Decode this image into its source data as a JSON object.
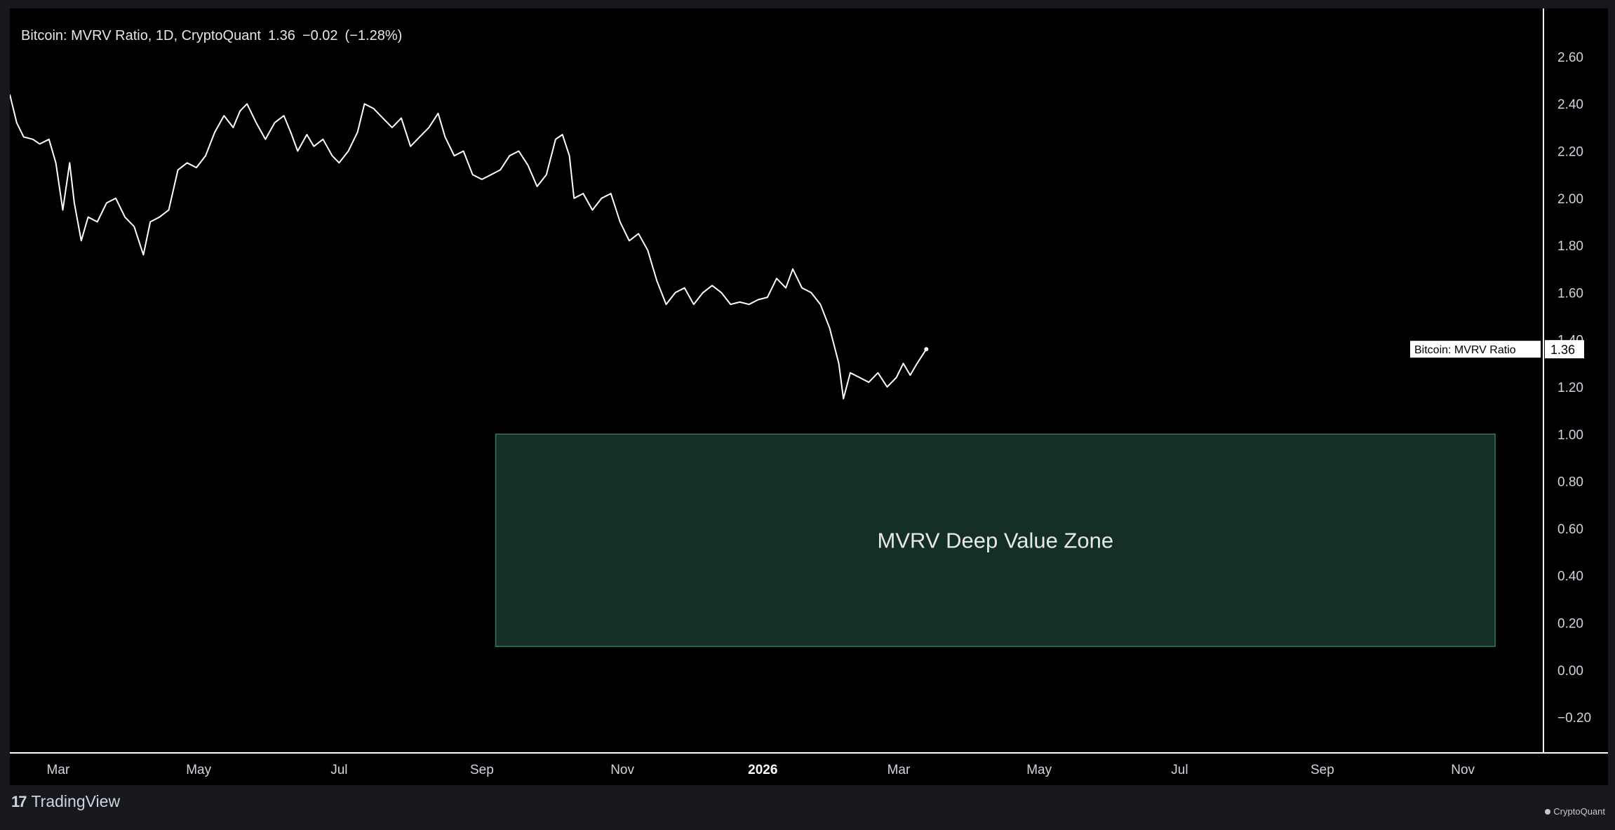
{
  "legend": {
    "series": "Bitcoin: MVRV Ratio, 1D, CryptoQuant",
    "last": "1.36",
    "change": "−0.02",
    "change_pct": "(−1.28%)"
  },
  "branding": {
    "tradingview": "TradingView",
    "cryptoquant": "CryptoQuant"
  },
  "colors": {
    "background": "#000000",
    "line": "#ffffff",
    "zone_fill": "#143026",
    "zone_border": "#2f7a5c",
    "axis": "#ffffff"
  },
  "chart_data": {
    "type": "line",
    "ylim": [
      -0.28,
      2.68
    ],
    "xlim": [
      "2025-02-08",
      "2026-12-06"
    ],
    "y_ticks": [
      "2.60",
      "2.40",
      "2.20",
      "2.00",
      "1.80",
      "1.60",
      "1.40",
      "1.20",
      "1.00",
      "0.80",
      "0.60",
      "0.40",
      "0.20",
      "0.00",
      "−0.20"
    ],
    "y_tick_values": [
      2.6,
      2.4,
      2.2,
      2.0,
      1.8,
      1.6,
      1.4,
      1.2,
      1.0,
      0.8,
      0.6,
      0.4,
      0.2,
      0.0,
      -0.2
    ],
    "x_ticks": [
      {
        "label": "Mar",
        "date": "2025-03-01",
        "bold": false
      },
      {
        "label": "May",
        "date": "2025-05-01",
        "bold": false
      },
      {
        "label": "Jul",
        "date": "2025-07-01",
        "bold": false
      },
      {
        "label": "Sep",
        "date": "2025-09-01",
        "bold": false
      },
      {
        "label": "Nov",
        "date": "2025-11-01",
        "bold": false
      },
      {
        "label": "2026",
        "date": "2026-01-01",
        "bold": true
      },
      {
        "label": "Mar",
        "date": "2026-03-01",
        "bold": false
      },
      {
        "label": "May",
        "date": "2026-05-01",
        "bold": false
      },
      {
        "label": "Jul",
        "date": "2026-07-01",
        "bold": false
      },
      {
        "label": "Sep",
        "date": "2026-09-01",
        "bold": false
      },
      {
        "label": "Nov",
        "date": "2026-11-01",
        "bold": false
      }
    ],
    "series": [
      {
        "name": "Bitcoin: MVRV Ratio",
        "points": [
          [
            "2025-02-08",
            2.44
          ],
          [
            "2025-02-11",
            2.32
          ],
          [
            "2025-02-14",
            2.26
          ],
          [
            "2025-02-18",
            2.25
          ],
          [
            "2025-02-21",
            2.23
          ],
          [
            "2025-02-25",
            2.25
          ],
          [
            "2025-02-28",
            2.15
          ],
          [
            "2025-03-03",
            1.95
          ],
          [
            "2025-03-06",
            2.15
          ],
          [
            "2025-03-08",
            1.98
          ],
          [
            "2025-03-11",
            1.82
          ],
          [
            "2025-03-14",
            1.92
          ],
          [
            "2025-03-18",
            1.9
          ],
          [
            "2025-03-22",
            1.98
          ],
          [
            "2025-03-26",
            2.0
          ],
          [
            "2025-03-30",
            1.92
          ],
          [
            "2025-04-03",
            1.88
          ],
          [
            "2025-04-07",
            1.76
          ],
          [
            "2025-04-10",
            1.9
          ],
          [
            "2025-04-14",
            1.92
          ],
          [
            "2025-04-18",
            1.95
          ],
          [
            "2025-04-22",
            2.12
          ],
          [
            "2025-04-26",
            2.15
          ],
          [
            "2025-04-30",
            2.13
          ],
          [
            "2025-05-04",
            2.18
          ],
          [
            "2025-05-08",
            2.28
          ],
          [
            "2025-05-12",
            2.35
          ],
          [
            "2025-05-16",
            2.3
          ],
          [
            "2025-05-19",
            2.37
          ],
          [
            "2025-05-22",
            2.4
          ],
          [
            "2025-05-26",
            2.32
          ],
          [
            "2025-05-30",
            2.25
          ],
          [
            "2025-06-03",
            2.32
          ],
          [
            "2025-06-07",
            2.35
          ],
          [
            "2025-06-10",
            2.28
          ],
          [
            "2025-06-13",
            2.2
          ],
          [
            "2025-06-17",
            2.27
          ],
          [
            "2025-06-20",
            2.22
          ],
          [
            "2025-06-24",
            2.25
          ],
          [
            "2025-06-28",
            2.18
          ],
          [
            "2025-07-01",
            2.15
          ],
          [
            "2025-07-05",
            2.2
          ],
          [
            "2025-07-09",
            2.28
          ],
          [
            "2025-07-12",
            2.4
          ],
          [
            "2025-07-16",
            2.38
          ],
          [
            "2025-07-20",
            2.34
          ],
          [
            "2025-07-24",
            2.3
          ],
          [
            "2025-07-28",
            2.34
          ],
          [
            "2025-08-01",
            2.22
          ],
          [
            "2025-08-05",
            2.26
          ],
          [
            "2025-08-09",
            2.3
          ],
          [
            "2025-08-13",
            2.36
          ],
          [
            "2025-08-16",
            2.26
          ],
          [
            "2025-08-20",
            2.18
          ],
          [
            "2025-08-24",
            2.2
          ],
          [
            "2025-08-28",
            2.1
          ],
          [
            "2025-09-01",
            2.08
          ],
          [
            "2025-09-05",
            2.1
          ],
          [
            "2025-09-09",
            2.12
          ],
          [
            "2025-09-13",
            2.18
          ],
          [
            "2025-09-17",
            2.2
          ],
          [
            "2025-09-21",
            2.14
          ],
          [
            "2025-09-25",
            2.05
          ],
          [
            "2025-09-29",
            2.1
          ],
          [
            "2025-10-03",
            2.25
          ],
          [
            "2025-10-06",
            2.27
          ],
          [
            "2025-10-09",
            2.18
          ],
          [
            "2025-10-11",
            2.0
          ],
          [
            "2025-10-15",
            2.02
          ],
          [
            "2025-10-19",
            1.95
          ],
          [
            "2025-10-23",
            2.0
          ],
          [
            "2025-10-27",
            2.02
          ],
          [
            "2025-10-31",
            1.9
          ],
          [
            "2025-11-04",
            1.82
          ],
          [
            "2025-11-08",
            1.85
          ],
          [
            "2025-11-12",
            1.78
          ],
          [
            "2025-11-16",
            1.65
          ],
          [
            "2025-11-20",
            1.55
          ],
          [
            "2025-11-24",
            1.6
          ],
          [
            "2025-11-28",
            1.62
          ],
          [
            "2025-12-02",
            1.55
          ],
          [
            "2025-12-06",
            1.6
          ],
          [
            "2025-12-10",
            1.63
          ],
          [
            "2025-12-14",
            1.6
          ],
          [
            "2025-12-18",
            1.55
          ],
          [
            "2025-12-22",
            1.56
          ],
          [
            "2025-12-26",
            1.55
          ],
          [
            "2025-12-30",
            1.57
          ],
          [
            "2026-01-03",
            1.58
          ],
          [
            "2026-01-07",
            1.66
          ],
          [
            "2026-01-11",
            1.62
          ],
          [
            "2026-01-14",
            1.7
          ],
          [
            "2026-01-18",
            1.62
          ],
          [
            "2026-01-22",
            1.6
          ],
          [
            "2026-01-26",
            1.55
          ],
          [
            "2026-01-30",
            1.45
          ],
          [
            "2026-02-03",
            1.3
          ],
          [
            "2026-02-05",
            1.15
          ],
          [
            "2026-02-08",
            1.26
          ],
          [
            "2026-02-12",
            1.24
          ],
          [
            "2026-02-16",
            1.22
          ],
          [
            "2026-02-20",
            1.26
          ],
          [
            "2026-02-24",
            1.2
          ],
          [
            "2026-02-28",
            1.24
          ],
          [
            "2026-03-03",
            1.3
          ],
          [
            "2026-03-06",
            1.25
          ],
          [
            "2026-03-09",
            1.3
          ],
          [
            "2026-03-13",
            1.36
          ]
        ]
      }
    ],
    "zones": [
      {
        "label": "MVRV Deep Value Zone",
        "x_start": "2025-09-07",
        "x_end": "2026-11-15",
        "y_start": 0.1,
        "y_end": 1.0
      }
    ],
    "price_label": {
      "name": "Bitcoin: MVRV Ratio",
      "value": "1.36",
      "y": 1.36
    }
  }
}
